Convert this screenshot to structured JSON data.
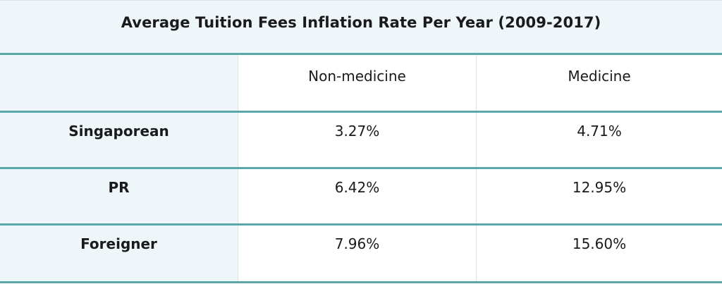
{
  "title": "Average Tuition Fees Inflation Rate Per Year (2009-2017)",
  "columns": [
    "",
    "Non-medicine",
    "Medicine"
  ],
  "rows": [
    {
      "label": "Singaporean",
      "non_medicine": "3.27%",
      "medicine": "4.71%"
    },
    {
      "label": "PR",
      "non_medicine": "6.42%",
      "medicine": "12.95%"
    },
    {
      "label": "Foreigner",
      "non_medicine": "7.96%",
      "medicine": "15.60%"
    }
  ],
  "colors": {
    "accent_border": "#5aa9a9",
    "header_bg": "#eef6f9",
    "divider": "#d6e6ea"
  }
}
